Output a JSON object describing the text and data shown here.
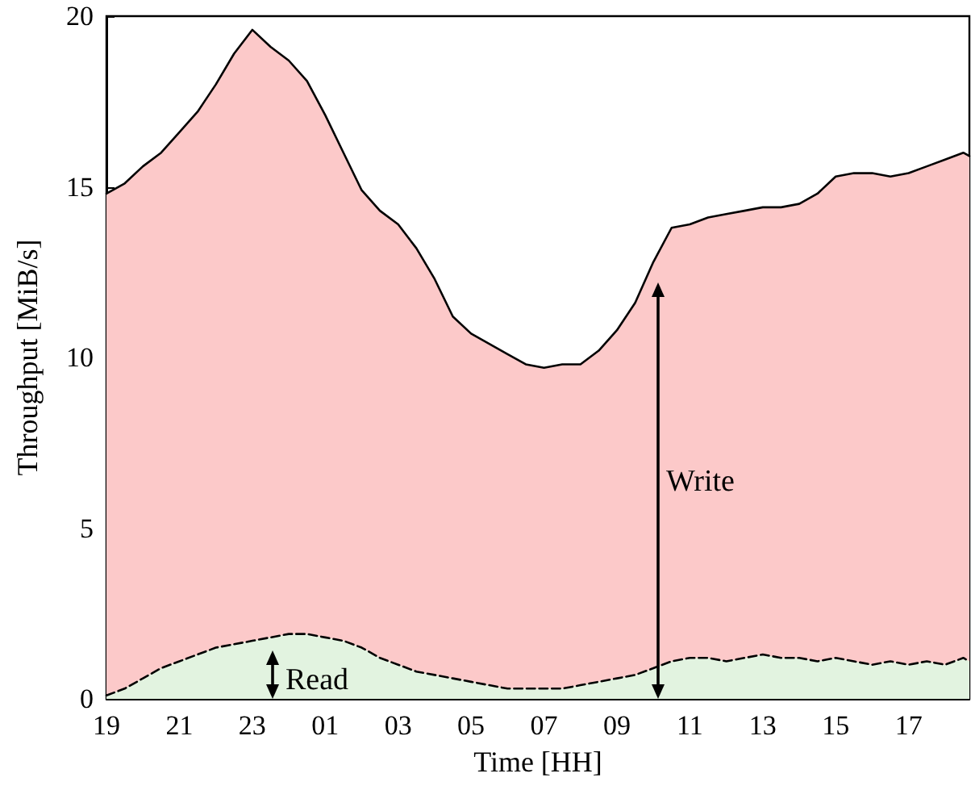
{
  "chart_data": {
    "type": "area",
    "xlabel": "Time [HH]",
    "ylabel": "Throughput [MiB/s]",
    "xlim": [
      "--01-01T19:00",
      "--01-02T18:40"
    ],
    "ylim": [
      0,
      20
    ],
    "xticks": [
      {
        "value": "--01-01T19:00",
        "label": "19"
      },
      {
        "value": "--01-01T21:00",
        "label": "21"
      },
      {
        "value": "--01-01T23:00",
        "label": "23"
      },
      {
        "value": "--01-02T01:00",
        "label": "01"
      },
      {
        "value": "--01-02T03:00",
        "label": "03"
      },
      {
        "value": "--01-02T05:00",
        "label": "05"
      },
      {
        "value": "--01-02T07:00",
        "label": "07"
      },
      {
        "value": "--01-02T09:00",
        "label": "09"
      },
      {
        "value": "--01-02T11:00",
        "label": "11"
      },
      {
        "value": "--01-02T13:00",
        "label": "13"
      },
      {
        "value": "--01-02T15:00",
        "label": "15"
      },
      {
        "value": "--01-02T17:00",
        "label": "17"
      }
    ],
    "yticks": [
      0,
      5,
      10,
      15,
      20
    ],
    "grid": false,
    "marker": "none",
    "annotations": [
      "Write",
      "Read"
    ],
    "x": [
      "--01-01T19:00",
      "--01-01T19:30",
      "--01-01T20:00",
      "--01-01T20:30",
      "--01-01T21:00",
      "--01-01T21:30",
      "--01-01T22:00",
      "--01-01T22:30",
      "--01-01T23:00",
      "--01-01T23:30",
      "--01-02T00:00",
      "--01-02T00:30",
      "--01-02T01:00",
      "--01-02T01:30",
      "--01-02T02:00",
      "--01-02T02:30",
      "--01-02T03:00",
      "--01-02T03:30",
      "--01-02T04:00",
      "--01-02T04:30",
      "--01-02T05:00",
      "--01-02T05:30",
      "--01-02T06:00",
      "--01-02T06:30",
      "--01-02T07:00",
      "--01-02T07:30",
      "--01-02T08:00",
      "--01-02T08:30",
      "--01-02T09:00",
      "--01-02T09:30",
      "--01-02T10:00",
      "--01-02T10:30",
      "--01-02T11:00",
      "--01-02T11:30",
      "--01-02T12:00",
      "--01-02T12:30",
      "--01-02T13:00",
      "--01-02T13:30",
      "--01-02T14:00",
      "--01-02T14:30",
      "--01-02T15:00",
      "--01-02T15:30",
      "--01-02T16:00",
      "--01-02T16:30",
      "--01-02T17:00",
      "--01-02T17:30",
      "--01-02T18:00",
      "--01-02T18:30",
      "--01-02T18:40"
    ],
    "series": [
      {
        "color": "#fcc9c9",
        "line_style": "solid",
        "values": [
          14.8,
          15.1,
          15.6,
          16.0,
          16.6,
          17.2,
          18.0,
          18.9,
          19.6,
          19.1,
          18.7,
          18.1,
          17.1,
          16.0,
          14.9,
          14.3,
          13.9,
          13.2,
          12.3,
          11.2,
          10.7,
          10.4,
          10.1,
          9.8,
          9.7,
          9.8,
          9.8,
          10.2,
          10.8,
          11.6,
          12.8,
          13.8,
          13.9,
          14.1,
          14.2,
          14.3,
          14.4,
          14.4,
          14.5,
          14.8,
          15.3,
          15.4,
          15.4,
          15.3,
          15.4,
          15.6,
          15.8,
          16.0,
          15.9
        ]
      },
      {
        "color": "#e2f3e0",
        "line_style": "dashed",
        "values": [
          0.1,
          0.3,
          0.6,
          0.9,
          1.1,
          1.3,
          1.5,
          1.6,
          1.7,
          1.8,
          1.9,
          1.9,
          1.8,
          1.7,
          1.5,
          1.2,
          1.0,
          0.8,
          0.7,
          0.6,
          0.5,
          0.4,
          0.3,
          0.3,
          0.3,
          0.3,
          0.4,
          0.5,
          0.6,
          0.7,
          0.9,
          1.1,
          1.2,
          1.2,
          1.1,
          1.2,
          1.3,
          1.2,
          1.2,
          1.1,
          1.2,
          1.1,
          1.0,
          1.1,
          1.0,
          1.1,
          1.0,
          1.2,
          1.1
        ]
      }
    ]
  }
}
